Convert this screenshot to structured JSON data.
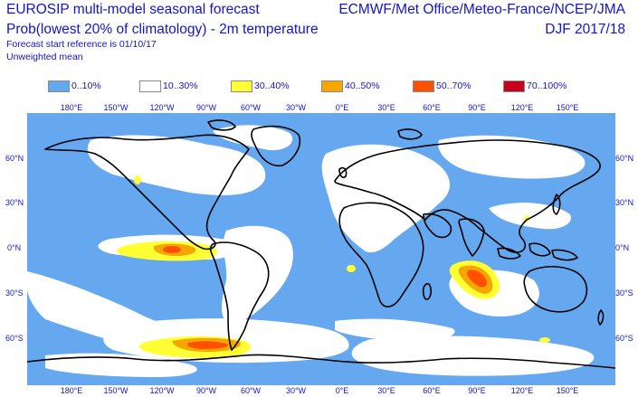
{
  "header": {
    "title_line1": "EUROSIP multi-model seasonal forecast",
    "title_line2": "Prob(lowest 20% of climatology) - 2m temperature",
    "forecast_ref": "Forecast start reference is 01/10/17",
    "weighting": "Unweighted mean",
    "centres": "ECMWF/Met Office/Meteo-France/NCEP/JMA",
    "season": "DJF 2017/18"
  },
  "legend": [
    {
      "label": "0..10%",
      "color": "#66a8f0"
    },
    {
      "label": "10..30%",
      "color": "#ffffff"
    },
    {
      "label": "30..40%",
      "color": "#ffff33"
    },
    {
      "label": "40..50%",
      "color": "#f5a700"
    },
    {
      "label": "50..70%",
      "color": "#ff5000"
    },
    {
      "label": "70..100%",
      "color": "#c8001e"
    }
  ],
  "axes": {
    "lon_labels": [
      "180°E",
      "150°W",
      "120°W",
      "90°W",
      "60°W",
      "30°W",
      "0°E",
      "30°E",
      "60°E",
      "90°E",
      "120°E",
      "150°E"
    ],
    "lat_labels": [
      "60°N",
      "30°N",
      "0°N",
      "30°S",
      "60°S"
    ]
  }
}
